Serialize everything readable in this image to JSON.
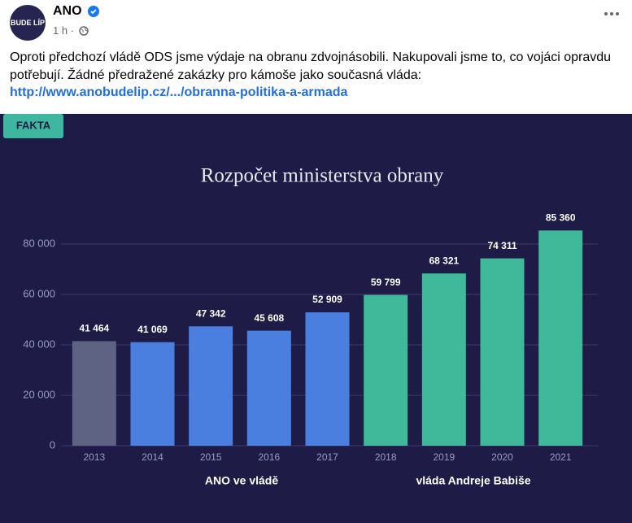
{
  "post": {
    "logo_text": "BUDE LÍP",
    "author": "ANO",
    "time": "1 h ·",
    "text": "Oproti předchozí vládě ODS jsme výdaje na obranu zdvojnásobili. Nakupovali jsme to, co vojáci opravdu potřebují. Žádné předražené zakázky pro kámoše jako současná vláda:",
    "link": "http://www.anobudelip.cz/.../obranna-politika-a-armada",
    "badge": "FAKTA"
  },
  "chart_data": {
    "type": "bar",
    "title": "Rozpočet ministerstva obrany",
    "categories": [
      "2013",
      "2014",
      "2015",
      "2016",
      "2017",
      "2018",
      "2019",
      "2020",
      "2021"
    ],
    "values": [
      41464,
      41069,
      47342,
      45608,
      52909,
      59799,
      68321,
      74311,
      85360
    ],
    "value_labels": [
      "41 464",
      "41 069",
      "47 342",
      "45 608",
      "52 909",
      "59 799",
      "68 321",
      "74 311",
      "85 360"
    ],
    "colors": [
      "#5e6383",
      "#4a7fe0",
      "#4a7fe0",
      "#4a7fe0",
      "#4a7fe0",
      "#40b99a",
      "#40b99a",
      "#40b99a",
      "#40b99a"
    ],
    "annotations": [
      "ANO ve vládě",
      "vláda Andreje Babiše"
    ],
    "ylim": [
      0,
      90000
    ],
    "yticks": [
      0,
      {
        "value": 20000,
        "label": "20 000"
      },
      {
        "value": 40000,
        "label": "40 000"
      },
      {
        "value": 60000,
        "label": "60 000"
      },
      {
        "value": 80000,
        "label": "80 000"
      }
    ],
    "grid": true
  }
}
